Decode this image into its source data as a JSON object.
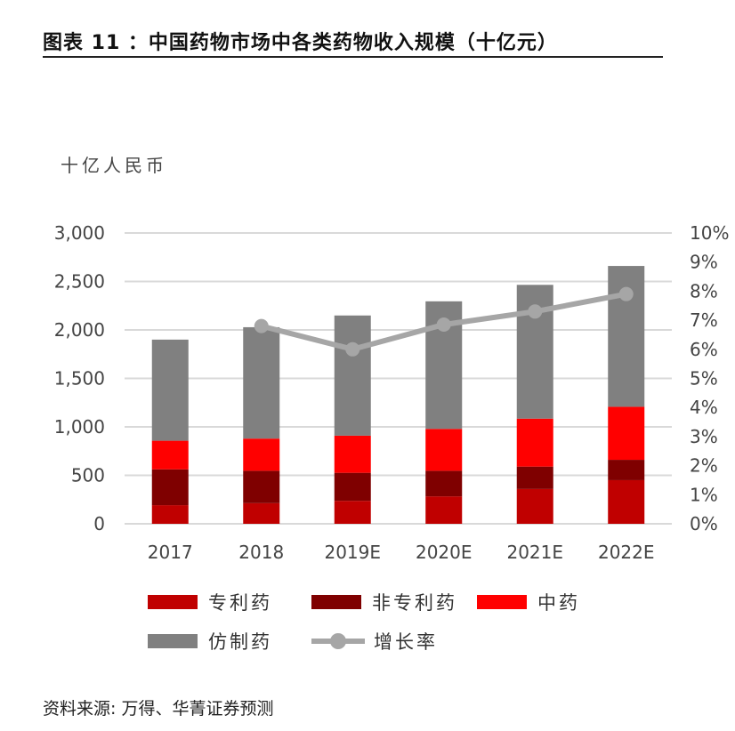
{
  "title": "图表 11 ：中国药物市场中各类药物收入规模（十亿元）",
  "source": "资料来源: 万得、华菁证券预测",
  "chart_data": {
    "type": "bar",
    "stacked": true,
    "title": "图表 11 ：中国药物市场中各类药物收入规模（十亿元）",
    "ylabel": "十亿人民币",
    "categories": [
      "2017",
      "2018",
      "2019E",
      "2020E",
      "2021E",
      "2022E"
    ],
    "ylim": [
      0,
      3000
    ],
    "yticks": [
      "0",
      "500",
      "1,000",
      "1,500",
      "2,000",
      "2,500",
      "3,000"
    ],
    "y2lim": [
      0,
      10
    ],
    "y2ticks": [
      "0%",
      "1%",
      "2%",
      "3%",
      "4%",
      "5%",
      "6%",
      "7%",
      "8%",
      "9%",
      "10%"
    ],
    "grid": true,
    "legend_placement": "bottom",
    "series": [
      {
        "name": "专利药",
        "color": "#C00000",
        "values": [
          192,
          213,
          237,
          283,
          359,
          450
        ]
      },
      {
        "name": "非专利药",
        "color": "#7F0000",
        "values": [
          370,
          334,
          289,
          264,
          231,
          210
        ]
      },
      {
        "name": "中药",
        "color": "#FF0000",
        "values": [
          295,
          332,
          383,
          432,
          495,
          547
        ]
      },
      {
        "name": "仿制药",
        "color": "#808080",
        "values": [
          1043,
          1149,
          1240,
          1316,
          1380,
          1453
        ]
      }
    ],
    "line": {
      "name": "增长率",
      "color": "#A6A6A6",
      "axis": "right",
      "unit": "%",
      "values": [
        null,
        6.8,
        6.0,
        6.85,
        7.3,
        7.9
      ]
    }
  }
}
